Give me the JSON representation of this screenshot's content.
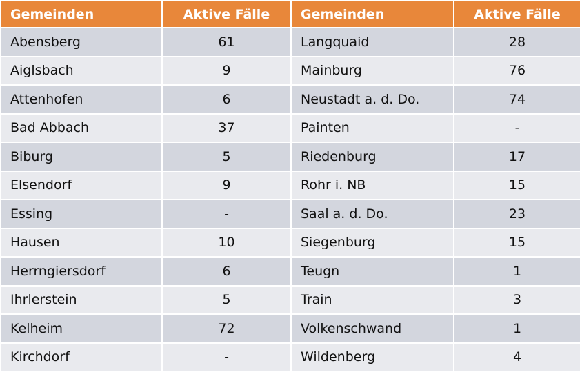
{
  "table": {
    "header": [
      "Gemeinden",
      "Aktive Fälle",
      "Gemeinden",
      "Aktive Fälle"
    ],
    "rows": [
      [
        "Abensberg",
        61,
        "Langquaid",
        28
      ],
      [
        "Aiglsbach",
        9,
        "Mainburg",
        76
      ],
      [
        "Attenhofen",
        6,
        "Neustadt a. d. Do.",
        74
      ],
      [
        "Bad Abbach",
        37,
        "Painten",
        "-"
      ],
      [
        "Biburg",
        5,
        "Riedenburg",
        17
      ],
      [
        "Elsendorf",
        9,
        "Rohr i. NB",
        15
      ],
      [
        "Essing",
        "-",
        "Saal a. d. Do.",
        23
      ],
      [
        "Hausen",
        10,
        "Siegenburg",
        15
      ],
      [
        "Herrngiersdorf",
        6,
        "Teugn",
        1
      ],
      [
        "Ihrlerstein",
        5,
        "Train",
        3
      ],
      [
        "Kelheim",
        72,
        "Volkenschwand",
        1
      ],
      [
        "Kirchdorf",
        "-",
        "Wildenberg",
        4
      ]
    ]
  }
}
